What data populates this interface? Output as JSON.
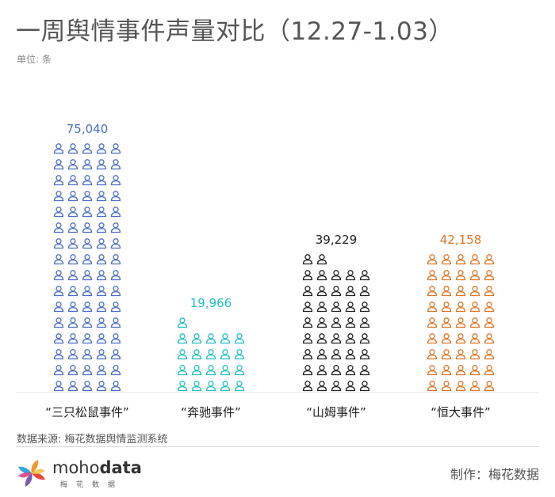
{
  "title": "一周舆情事件声量对比（12.27-1.03）",
  "unit_label": "单位: 条",
  "source": "数据来源: 梅花数据舆情监测系统",
  "logo": {
    "name_light": "moho",
    "name_bold": "data",
    "sub": "梅花数据"
  },
  "credit": "制作：梅花数据",
  "icon": "person-icon",
  "chart_data": {
    "type": "pictograph",
    "categories": [
      "“三只松鼠事件”",
      "“奔驰事件”",
      "“山姆事件”",
      "“恒大事件”"
    ],
    "values": [
      75040,
      19966,
      39229,
      42158
    ],
    "value_labels": [
      "75,040",
      "19,966",
      "39,229",
      "42,158"
    ],
    "icon_counts": [
      80,
      21,
      42,
      45
    ],
    "colors": [
      "#4a6fc4",
      "#22bfc6",
      "#222222",
      "#e07524"
    ]
  }
}
